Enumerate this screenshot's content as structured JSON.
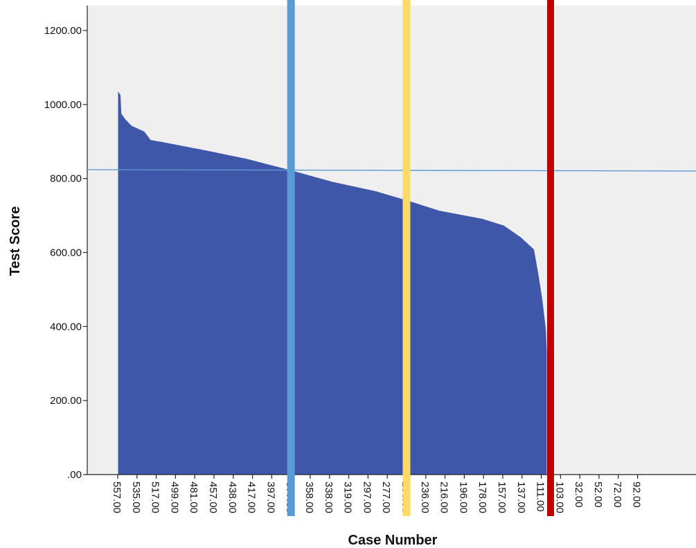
{
  "chart_data": {
    "type": "area",
    "title": "",
    "xlabel": "Case Number",
    "ylabel": "Test Score",
    "ylim": [
      0,
      1200
    ],
    "yticks": [
      0,
      200,
      400,
      600,
      800,
      1000,
      1200
    ],
    "ytick_labels": [
      ".00",
      "200.00",
      "400.00",
      "600.00",
      "800.00",
      "1000.00",
      "1200.00"
    ],
    "xtick_labels": [
      "557.00",
      "535.00",
      "517.00",
      "499.00",
      "481.00",
      "457.00",
      "438.00",
      "417.00",
      "397.00",
      "377.00",
      "358.00",
      "338.00",
      "319.00",
      "297.00",
      "277.00",
      "256.00",
      "236.00",
      "216.00",
      "196.00",
      "178.00",
      "157.00",
      "137.00",
      "111.00",
      "103.00",
      "32.00",
      "52.00",
      "72.00",
      "92.00"
    ],
    "grid": false,
    "plot_background": "#efefef",
    "series": [
      {
        "color": "#3f57a8",
        "points": [
          {
            "x_frac": 0.0,
            "y": 1032
          },
          {
            "x_frac": 0.004,
            "y": 1025
          },
          {
            "x_frac": 0.006,
            "y": 975
          },
          {
            "x_frac": 0.015,
            "y": 960
          },
          {
            "x_frac": 0.03,
            "y": 942
          },
          {
            "x_frac": 0.06,
            "y": 926
          },
          {
            "x_frac": 0.075,
            "y": 903
          },
          {
            "x_frac": 0.1,
            "y": 898
          },
          {
            "x_frac": 0.2,
            "y": 876
          },
          {
            "x_frac": 0.3,
            "y": 852
          },
          {
            "x_frac": 0.4,
            "y": 822
          },
          {
            "x_frac": 0.5,
            "y": 790
          },
          {
            "x_frac": 0.6,
            "y": 765
          },
          {
            "x_frac": 0.68,
            "y": 738
          },
          {
            "x_frac": 0.75,
            "y": 712
          },
          {
            "x_frac": 0.85,
            "y": 690
          },
          {
            "x_frac": 0.9,
            "y": 672
          },
          {
            "x_frac": 0.94,
            "y": 640
          },
          {
            "x_frac": 0.97,
            "y": 608
          },
          {
            "x_frac": 0.98,
            "y": 545
          },
          {
            "x_frac": 0.99,
            "y": 470
          },
          {
            "x_frac": 0.995,
            "y": 420
          },
          {
            "x_frac": 0.998,
            "y": 390
          },
          {
            "x_frac": 1.0,
            "y": 330
          }
        ]
      }
    ],
    "reference_lines": [
      {
        "orientation": "horizontal",
        "y": 824,
        "color": "#5b9bd5"
      },
      {
        "orientation": "vertical",
        "at_case": "377.00",
        "color": "#5b9bd5"
      },
      {
        "orientation": "vertical",
        "at_case": "256.00",
        "color": "#ffd966"
      },
      {
        "orientation": "vertical",
        "at_case": "111.00",
        "color": "#c00000"
      }
    ]
  }
}
